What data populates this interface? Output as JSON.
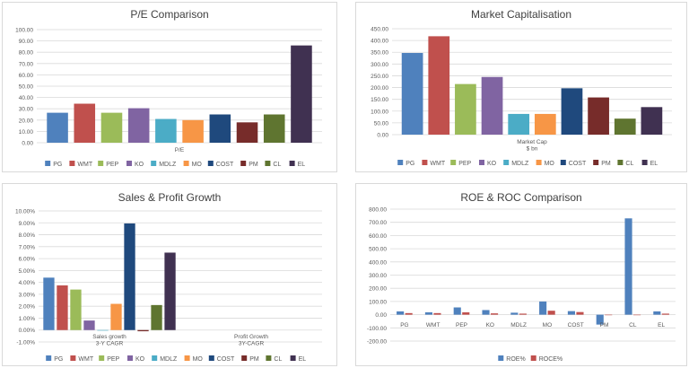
{
  "palette": [
    "#4F81BD",
    "#C0504D",
    "#9BBB59",
    "#8064A2",
    "#4BACC6",
    "#F79646",
    "#1F497D",
    "#772C2A",
    "#5F7530",
    "#403151"
  ],
  "roe_colors": {
    "ROE%": "#4F81BD",
    "ROCE%": "#C0504D"
  },
  "chart_data": [
    {
      "id": "pe",
      "type": "bar",
      "title": "P/E Comparison",
      "categories": [
        "P/E"
      ],
      "series": [
        {
          "name": "PG",
          "values": [
            26.5
          ]
        },
        {
          "name": "WMT",
          "values": [
            34.5
          ]
        },
        {
          "name": "PEP",
          "values": [
            26.5
          ]
        },
        {
          "name": "KO",
          "values": [
            30.5
          ]
        },
        {
          "name": "MDLZ",
          "values": [
            21
          ]
        },
        {
          "name": "MO",
          "values": [
            20
          ]
        },
        {
          "name": "COST",
          "values": [
            25
          ]
        },
        {
          "name": "PM",
          "values": [
            18
          ]
        },
        {
          "name": "CL",
          "values": [
            25
          ]
        },
        {
          "name": "EL",
          "values": [
            86
          ]
        }
      ],
      "ylim": [
        0,
        100
      ],
      "yticks": [
        "0.00",
        "10.00",
        "20.00",
        "30.00",
        "40.00",
        "50.00",
        "60.00",
        "70.00",
        "80.00",
        "90.00",
        "100.00"
      ],
      "xlabel": "",
      "ylabel": "",
      "grid": true,
      "legend": "bottom"
    },
    {
      "id": "mcap",
      "type": "bar",
      "title": "Market Capitalisation",
      "categories": [
        "Market Cap\n$ bn"
      ],
      "series": [
        {
          "name": "PG",
          "values": [
            347
          ]
        },
        {
          "name": "WMT",
          "values": [
            418
          ]
        },
        {
          "name": "PEP",
          "values": [
            215
          ]
        },
        {
          "name": "KO",
          "values": [
            245
          ]
        },
        {
          "name": "MDLZ",
          "values": [
            88
          ]
        },
        {
          "name": "MO",
          "values": [
            88
          ]
        },
        {
          "name": "COST",
          "values": [
            197
          ]
        },
        {
          "name": "PM",
          "values": [
            158
          ]
        },
        {
          "name": "CL",
          "values": [
            68
          ]
        },
        {
          "name": "EL",
          "values": [
            117
          ]
        }
      ],
      "ylim": [
        0,
        450
      ],
      "yticks": [
        "0.00",
        "50.00",
        "100.00",
        "150.00",
        "200.00",
        "250.00",
        "300.00",
        "350.00",
        "400.00",
        "450.00"
      ],
      "xlabel": "",
      "ylabel": "",
      "grid": true,
      "legend": "bottom"
    },
    {
      "id": "growth",
      "type": "bar",
      "title": "Sales & Profit Growth",
      "categories": [
        "Sales growth\n3-Y CAGR",
        "Profit Growth\n3Y-CAGR"
      ],
      "series": [
        {
          "name": "PG",
          "values": [
            4.4,
            null
          ]
        },
        {
          "name": "WMT",
          "values": [
            3.75,
            null
          ]
        },
        {
          "name": "PEP",
          "values": [
            3.4,
            null
          ]
        },
        {
          "name": "KO",
          "values": [
            0.8,
            null
          ]
        },
        {
          "name": "MDLZ",
          "values": [
            0,
            null
          ]
        },
        {
          "name": "MO",
          "values": [
            2.2,
            null
          ]
        },
        {
          "name": "COST",
          "values": [
            8.95,
            null
          ]
        },
        {
          "name": "PM",
          "values": [
            -0.1,
            null
          ]
        },
        {
          "name": "CL",
          "values": [
            2.1,
            null
          ]
        },
        {
          "name": "EL",
          "values": [
            6.5,
            null
          ]
        }
      ],
      "ylim": [
        -1,
        10
      ],
      "yticks": [
        "-1.00%",
        "0.00%",
        "1.00%",
        "2.00%",
        "3.00%",
        "4.00%",
        "5.00%",
        "6.00%",
        "7.00%",
        "8.00%",
        "9.00%",
        "10.00%"
      ],
      "xlabel": "",
      "ylabel": "",
      "grid": true,
      "legend": "bottom"
    },
    {
      "id": "roe",
      "type": "bar",
      "title": "ROE & ROC Comparison",
      "categories": [
        "PG",
        "WMT",
        "PEP",
        "KO",
        "MDLZ",
        "MO",
        "COST",
        "PM",
        "CL",
        "EL"
      ],
      "series": [
        {
          "name": "ROE%",
          "values": [
            25,
            18,
            55,
            35,
            15,
            100,
            27,
            -75,
            730,
            25
          ]
        },
        {
          "name": "ROCE%",
          "values": [
            12,
            12,
            18,
            10,
            8,
            30,
            20,
            0,
            0,
            8
          ]
        }
      ],
      "ylim": [
        -200,
        800
      ],
      "yticks": [
        "-200.00",
        "-100.00",
        "0.00",
        "100.00",
        "200.00",
        "300.00",
        "400.00",
        "500.00",
        "600.00",
        "700.00",
        "800.00"
      ],
      "xlabel": "",
      "ylabel": "",
      "grid": true,
      "legend": "bottom"
    }
  ]
}
